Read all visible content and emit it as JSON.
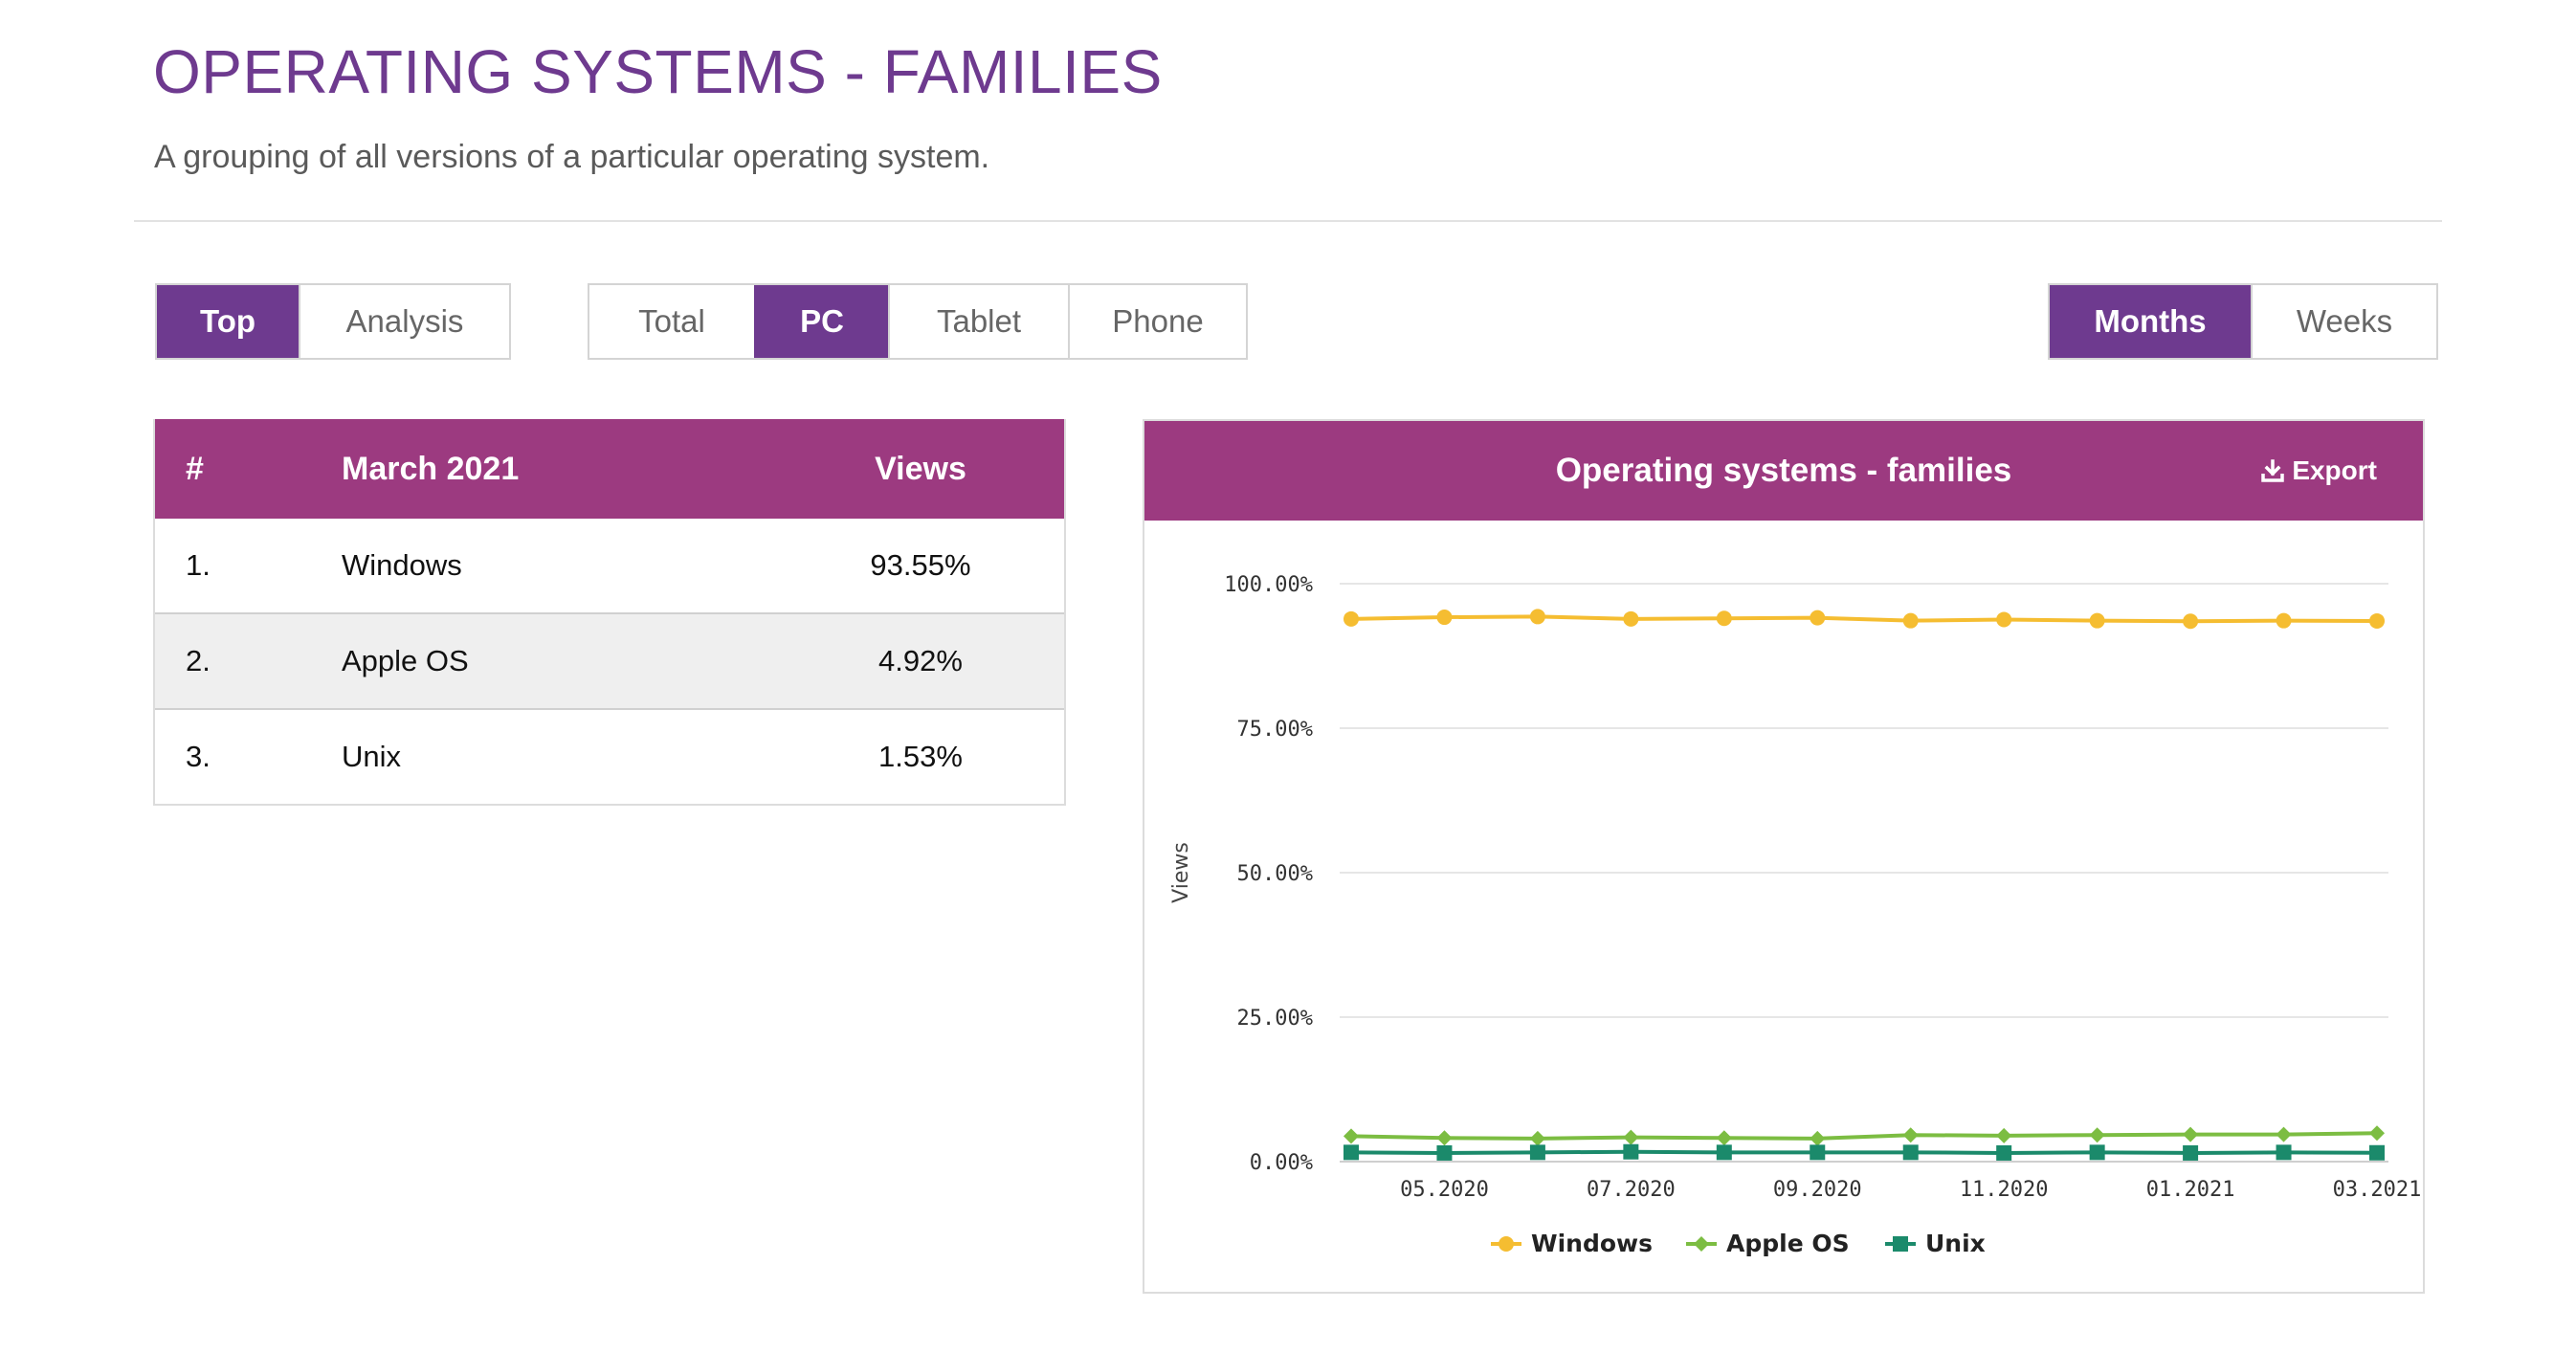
{
  "header": {
    "title": "OPERATING SYSTEMS - FAMILIES",
    "subtitle": "A grouping of all versions of a particular operating system."
  },
  "view_toggle": [
    {
      "label": "Top",
      "active": true
    },
    {
      "label": "Analysis",
      "active": false
    }
  ],
  "device_toggle": [
    {
      "label": "Total",
      "active": false
    },
    {
      "label": "PC",
      "active": true
    },
    {
      "label": "Tablet",
      "active": false
    },
    {
      "label": "Phone",
      "active": false
    }
  ],
  "period_toggle": [
    {
      "label": "Months",
      "active": true
    },
    {
      "label": "Weeks",
      "active": false
    }
  ],
  "table": {
    "col_rank": "#",
    "col_period": "March 2021",
    "col_views": "Views",
    "rows": [
      {
        "rank": "1.",
        "name": "Windows",
        "views": "93.55%"
      },
      {
        "rank": "2.",
        "name": "Apple OS",
        "views": "4.92%"
      },
      {
        "rank": "3.",
        "name": "Unix",
        "views": "1.53%"
      }
    ]
  },
  "chart_panel": {
    "title": "Operating systems - families",
    "export_label": "Export",
    "export_icon": "download-icon"
  },
  "colors": {
    "brand_purple": "#6e3a8f",
    "header_magenta": "#9c3a80",
    "windows": "#f5bd31",
    "apple_os": "#7cbd42",
    "unix": "#1b8a6b"
  },
  "chart_data": {
    "type": "line",
    "title": "",
    "ylabel": "Views",
    "xlabel": "",
    "ylim": [
      0,
      100
    ],
    "y_ticks": [
      "0.00%",
      "25.00%",
      "50.00%",
      "75.00%",
      "100.00%"
    ],
    "x": [
      "04.2020",
      "05.2020",
      "06.2020",
      "07.2020",
      "08.2020",
      "09.2020",
      "10.2020",
      "11.2020",
      "12.2020",
      "01.2021",
      "02.2021",
      "03.2021"
    ],
    "x_tick_labels": [
      "05.2020",
      "07.2020",
      "09.2020",
      "11.2020",
      "01.2021",
      "03.2021"
    ],
    "grid": true,
    "legend_position": "bottom",
    "series": [
      {
        "name": "Windows",
        "color": "#f5bd31",
        "marker": "circle",
        "values": [
          93.9,
          94.2,
          94.3,
          93.9,
          94.0,
          94.1,
          93.6,
          93.8,
          93.6,
          93.5,
          93.6,
          93.55
        ]
      },
      {
        "name": "Apple OS",
        "color": "#7cbd42",
        "marker": "diamond",
        "values": [
          4.4,
          4.1,
          4.0,
          4.2,
          4.1,
          4.0,
          4.6,
          4.5,
          4.6,
          4.7,
          4.7,
          4.92
        ]
      },
      {
        "name": "Unix",
        "color": "#1b8a6b",
        "marker": "square",
        "values": [
          1.6,
          1.5,
          1.6,
          1.7,
          1.6,
          1.6,
          1.6,
          1.5,
          1.6,
          1.5,
          1.6,
          1.53
        ]
      }
    ]
  }
}
